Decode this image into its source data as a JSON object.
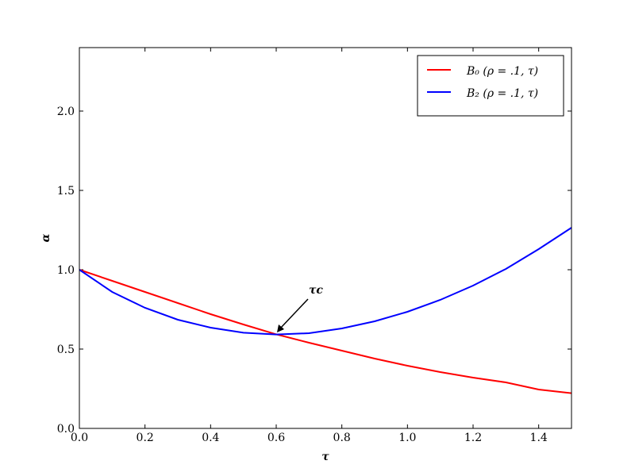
{
  "chart_data": {
    "type": "line",
    "x_label": "τ",
    "y_label": "α",
    "x": [
      0,
      0.1,
      0.2,
      0.3,
      0.4,
      0.5,
      0.6,
      0.7,
      0.8,
      0.9,
      1.0,
      1.1,
      1.2,
      1.3,
      1.4,
      1.5
    ],
    "series": [
      {
        "name": "B₀ (ρ = .1, τ)",
        "color": "#ff0000",
        "values": [
          1.0,
          0.93,
          0.86,
          0.79,
          0.72,
          0.655,
          0.593,
          0.54,
          0.49,
          0.44,
          0.395,
          0.355,
          0.32,
          0.29,
          0.245,
          0.222
        ]
      },
      {
        "name": "B₂ (ρ = .1, τ)",
        "color": "#0000ff",
        "values": [
          1.0,
          0.86,
          0.76,
          0.685,
          0.635,
          0.603,
          0.592,
          0.6,
          0.63,
          0.675,
          0.735,
          0.81,
          0.9,
          1.005,
          1.13,
          1.265
        ]
      }
    ],
    "xlim": [
      0,
      1.5
    ],
    "ylim": [
      0,
      2.4
    ],
    "xticks": [
      {
        "value": 0,
        "label": "0.0"
      },
      {
        "value": 0.2,
        "label": "0.2"
      },
      {
        "value": 0.4,
        "label": "0.4"
      },
      {
        "value": 0.6,
        "label": "0.6"
      },
      {
        "value": 0.8,
        "label": "0.8"
      },
      {
        "value": 1.0,
        "label": "1.0"
      },
      {
        "value": 1.2,
        "label": "1.2"
      },
      {
        "value": 1.4,
        "label": "1.4"
      }
    ],
    "yticks": [
      {
        "value": 0,
        "label": "0.0"
      },
      {
        "value": 0.5,
        "label": "0.5"
      },
      {
        "value": 1.0,
        "label": "1.0"
      },
      {
        "value": 1.5,
        "label": "1.5"
      },
      {
        "value": 2.0,
        "label": "2.0"
      }
    ],
    "legend": "upper right",
    "annotation": "τc"
  }
}
